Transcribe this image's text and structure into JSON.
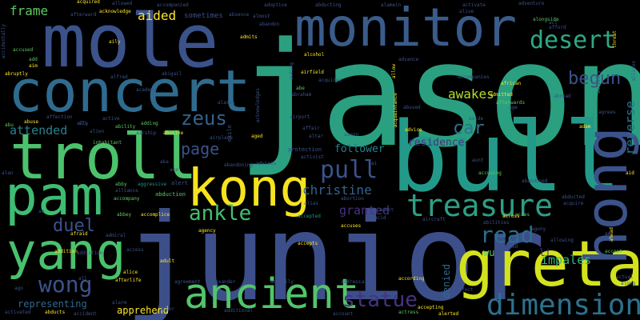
{
  "colors": {
    "background": "#000000",
    "palette": [
      "#440154",
      "#3b528b",
      "#21918c",
      "#5ec962",
      "#fde725"
    ]
  },
  "words": {
    "jason": "jason",
    "junior": "junior",
    "mole": "mole",
    "bull": "bull",
    "monitor": "monitor",
    "concert": "concert",
    "troll": "troll",
    "pam": "pam",
    "kong": "kong",
    "greta": "greta",
    "yang": "yang",
    "hong": "hong",
    "ancient": "ancient",
    "treasure": "treasure",
    "dimension": "dimension",
    "desert": "desert",
    "pull": "pull",
    "read": "read",
    "statue": "statue",
    "wong": "wong",
    "ankle": "ankle",
    "zeus": "zeus",
    "page": "page",
    "car": "car",
    "duel": "duel",
    "begun": "begun",
    "frame": "frame",
    "aided": "aided",
    "awakes": "awakes",
    "christine": "christine",
    "granted": "granted",
    "impales": "impales",
    "attended": "attended",
    "residence": "residence",
    "follower": "follower",
    "representing": "representing",
    "apprehend": "apprehend",
    "reverse": "reverse",
    "denied": "denied",
    "li": "li",
    "wu": "wu",
    "sometimes": "sometimes",
    "abduction": "abduction",
    "alert": "alert",
    "alias": "alias",
    "accepted": "accepted",
    "accepts": "accepts",
    "accuses": "accuses",
    "admitted": "admitted",
    "advice": "advice",
    "actress": "actress",
    "alerted": "alerted",
    "accepting": "accepting",
    "according": "according",
    "address": "address",
    "alone": "alone",
    "account": "account",
    "additional": "additional",
    "activated": "activated",
    "abducts": "abducts",
    "accident": "accident",
    "alarm": "alarm",
    "afterlife": "afterlife",
    "agreement": "agreement",
    "alexander": "alexander",
    "actually": "actually",
    "adult": "adult",
    "actor": "actor",
    "alice": "alice",
    "access": "access",
    "admiral": "admiral",
    "afraid": "afraid",
    "abbey": "abbey",
    "accomplice": "accomplice",
    "alliance": "alliance",
    "abby": "abby",
    "accompany": "accompany",
    "aggressive": "aggressive",
    "agency": "agency",
    "inhabitant": "inhabitant",
    "ability": "ability",
    "airship": "airship",
    "adding": "adding",
    "abusive": "abusive",
    "abu": "abu",
    "abuse": "abuse",
    "affection": "affection",
    "active": "active",
    "abruptly": "abruptly",
    "acquired": "acquired",
    "afterward": "afterward",
    "acknowledge": "acknowledge",
    "allowed": "allowed",
    "accompanied": "accompanied",
    "absence": "absence",
    "almost": "almost",
    "adoptive": "adoptive",
    "admits": "admits",
    "abandon": "abandon",
    "abducting": "abducting",
    "alamein": "alamein",
    "activate": "activate",
    "alive": "alive",
    "adventure": "adventure",
    "alongside": "alongside",
    "act": "act",
    "afford": "afford",
    "accidentally": "accidentally",
    "accused": "accused",
    "add": "add",
    "aim": "aim",
    "aily": "aily",
    "alfred": "alfred",
    "abigail": "abigail",
    "airplane": "airplane",
    "albert": "albert",
    "acting": "acting",
    "alcohol": "alcohol",
    "airfield": "airfield",
    "acquires": "acquires",
    "abe": "abe",
    "abraham": "abraham",
    "acknowledges": "acknowledges",
    "airport": "airport",
    "affair": "affair",
    "aaron": "aaron",
    "altar": "altar",
    "activist": "activist",
    "aged": "aged",
    "protection": "protection",
    "advises": "advises",
    "abandoning": "abandoning",
    "exile": "exile",
    "advance": "advance",
    "allow": "allow",
    "acquaintance": "acquaintance",
    "accompanies": "accompanies",
    "afterwards": "afterwards",
    "african": "african",
    "abused": "abused",
    "abroad": "abroad",
    "abandoned": "abandoned",
    "accusing": "accusing",
    "abducted": "abducted",
    "acquire": "acquire",
    "acres": "acres",
    "allowing": "allowing",
    "adopted": "adopted",
    "align": "align",
    "accept": "accept",
    "actual": "actual",
    "along": "along",
    "agrees": "agrees",
    "adam": "adam",
    "activity": "activity",
    "threat": "threat",
    "allison": "allison",
    "ahead": "ahead",
    "aid": "aid",
    "abilities": "abilities",
    "across": "across",
    "aircraft": "aircraft",
    "abortion": "abortion",
    "affect": "affect",
    "ago": "ago",
    "academy": "academy",
    "age": "age",
    "addiction": "addiction",
    "addition": "addition",
    "aside": "aside",
    "alien": "alien",
    "alan": "alan",
    "ally": "ally",
    "acid": "acid",
    "agent": "agent",
    "agony": "agony",
    "alarms": "alarms",
    "ai": "ai",
    "aka": "aka",
    "ace": "ace",
    "all": "all",
    "aa": "aa",
    "am": "am",
    "ali": "ali",
    "aunt": "aunt"
  }
}
